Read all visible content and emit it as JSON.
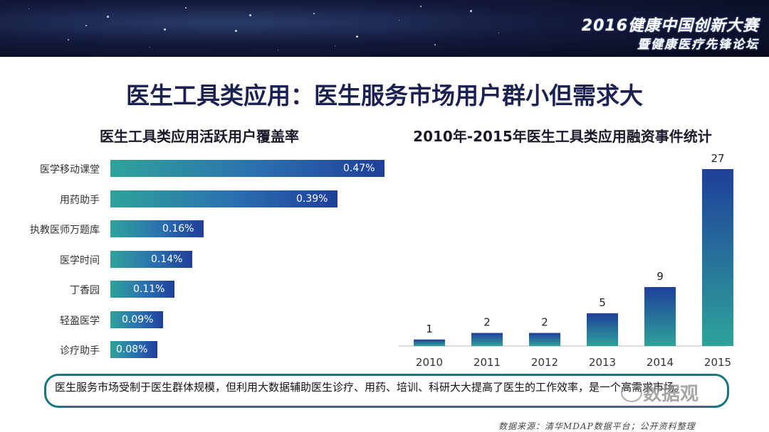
{
  "banner": {
    "line1": "2016健康中国创新大赛",
    "line2": "暨健康医疗先锋论坛"
  },
  "page_title": "医生工具类应用：医生服务市场用户群小但需求大",
  "note": "医生服务市场受制于医生群体规模，但利用大数据辅助医生诊疗、用药、培训、科研大大提高了医生的工作效率，是一个高需求市场。",
  "watermark": "数据观",
  "source": "数据来源：清华MDAP数据平台；公开资料整理",
  "colors": {
    "bar_start": "#2ea39a",
    "bar_end": "#1f3f9a",
    "note_border": "#17777a",
    "title": "#1b2150"
  },
  "chart_data": [
    {
      "type": "bar",
      "orientation": "horizontal",
      "title": "医生工具类应用活跃用户覆盖率",
      "categories": [
        "医学移动课堂",
        "用药助手",
        "执教医师万题库",
        "医学时间",
        "丁香园",
        "轻盈医学",
        "诊疗助手"
      ],
      "values": [
        0.47,
        0.39,
        0.16,
        0.14,
        0.11,
        0.09,
        0.08
      ],
      "value_labels": [
        "0.47%",
        "0.39%",
        "0.16%",
        "0.14%",
        "0.11%",
        "0.09%",
        "0.08%"
      ],
      "xlim": [
        0,
        0.47
      ],
      "grid": false
    },
    {
      "type": "bar",
      "orientation": "vertical",
      "title": "2010年-2015年医生工具类应用融资事件统计",
      "categories": [
        "2010",
        "2011",
        "2012",
        "2013",
        "2014",
        "2015"
      ],
      "values": [
        1,
        2,
        2,
        5,
        9,
        27
      ],
      "ylim": [
        0,
        27
      ],
      "grid": false
    }
  ]
}
